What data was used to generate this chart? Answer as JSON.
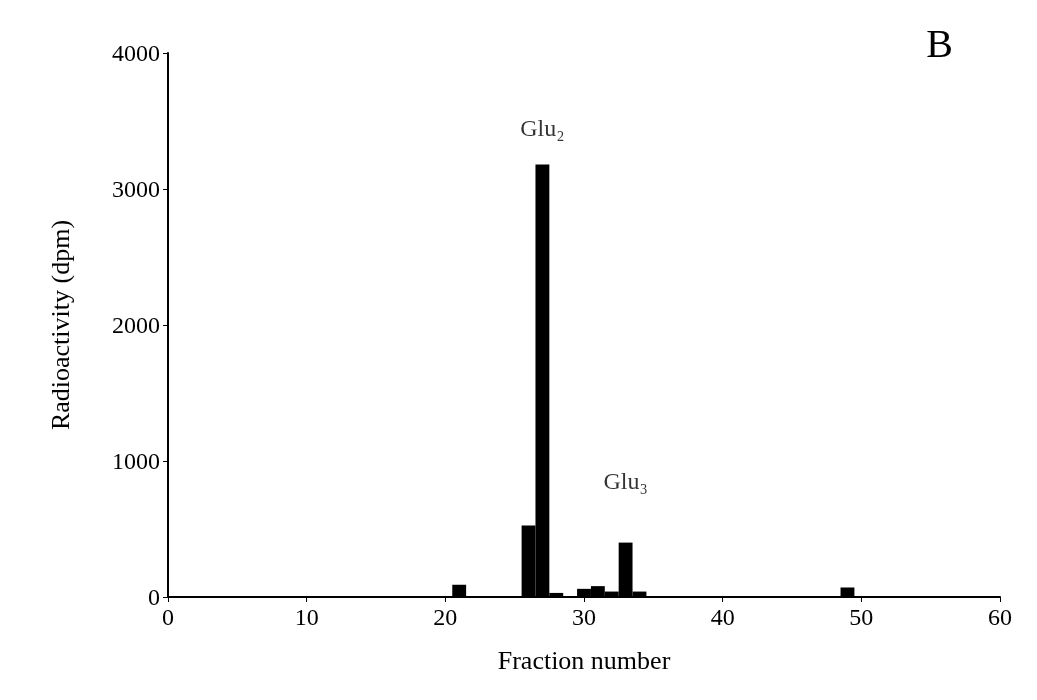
{
  "chart_data": {
    "type": "bar",
    "title": "B",
    "xlabel": "Fraction number",
    "ylabel": "Radioactivity (dpm)",
    "x": [
      1,
      2,
      3,
      4,
      5,
      6,
      7,
      8,
      9,
      10,
      11,
      12,
      13,
      14,
      15,
      16,
      17,
      18,
      19,
      20,
      21,
      22,
      23,
      24,
      25,
      26,
      27,
      28,
      29,
      30,
      31,
      32,
      33,
      34,
      35,
      36,
      37,
      38,
      39,
      40,
      41,
      42,
      43,
      44,
      45,
      46,
      47,
      48,
      49,
      50,
      51,
      52,
      53,
      54,
      55,
      56,
      57,
      58,
      59,
      60
    ],
    "values": [
      0,
      0,
      0,
      0,
      0,
      0,
      0,
      0,
      0,
      0,
      0,
      0,
      0,
      0,
      0,
      0,
      0,
      0,
      0,
      0,
      90,
      0,
      0,
      0,
      0,
      525,
      3180,
      30,
      0,
      60,
      80,
      40,
      400,
      40,
      0,
      0,
      0,
      0,
      0,
      0,
      0,
      0,
      0,
      0,
      0,
      0,
      0,
      0,
      70,
      0,
      0,
      0,
      0,
      0,
      0,
      0,
      0,
      0,
      0,
      0
    ],
    "color": "#000000",
    "xlim": [
      0,
      60
    ],
    "xticks": [
      0,
      10,
      20,
      30,
      40,
      50,
      60
    ],
    "ylim": [
      0,
      4000
    ],
    "yticks": [
      0,
      1000,
      2000,
      3000,
      4000
    ],
    "annotations": [
      {
        "text": "Glu₂",
        "x": 27,
        "y": 3180
      },
      {
        "text": "Glu₃",
        "x": 33,
        "y": 400
      }
    ]
  }
}
